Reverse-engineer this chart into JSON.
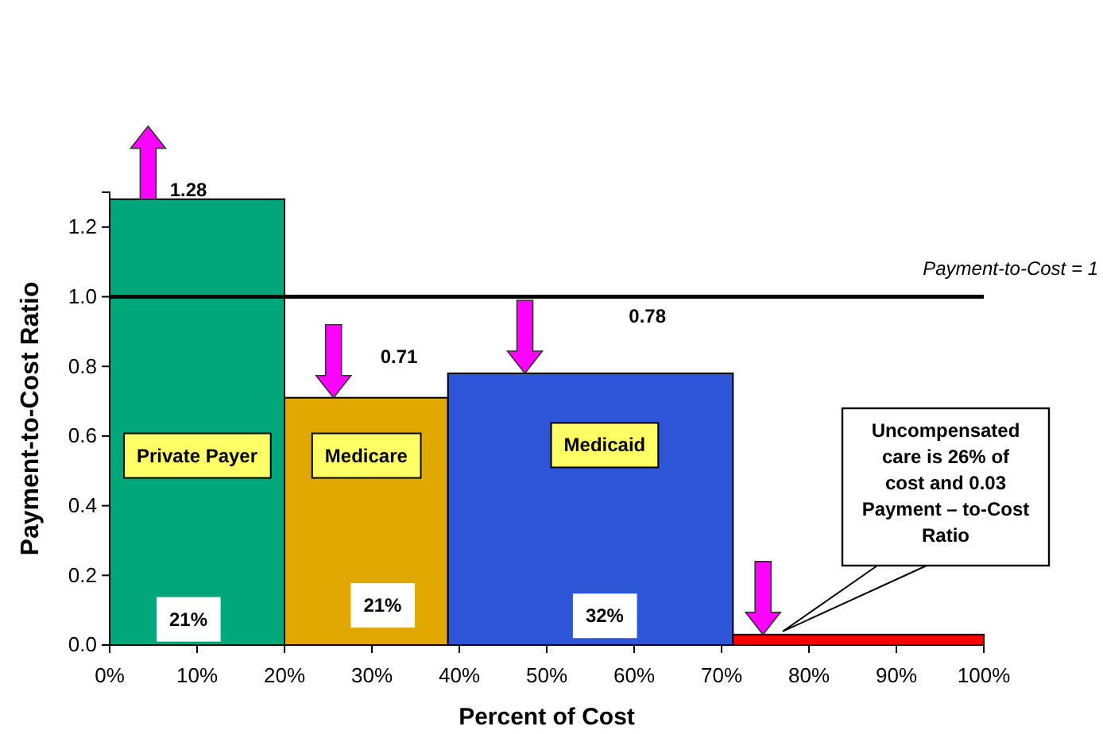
{
  "chart_data": {
    "type": "histogram",
    "xlabel": "Percent of Cost",
    "ylabel": "Payment-to-Cost Ratio",
    "bins": [
      0,
      20,
      38.7,
      71.3,
      100
    ],
    "values": [
      1.28,
      0.71,
      0.78,
      0.03
    ],
    "colors": [
      "#00a77a",
      "#e0a800",
      "#2e55d8",
      "#ff0000"
    ],
    "value_labels": [
      "1.28",
      "0.71",
      "0.78",
      null
    ],
    "xlim": [
      0,
      100
    ],
    "ylim": [
      0,
      1.3
    ],
    "xticks": [
      {
        "value": 0,
        "label": "0%"
      },
      {
        "value": 10,
        "label": "10%"
      },
      {
        "value": 20,
        "label": "20%"
      },
      {
        "value": 30,
        "label": "30%"
      },
      {
        "value": 40,
        "label": "40%"
      },
      {
        "value": 50,
        "label": "50%"
      },
      {
        "value": 60,
        "label": "60%"
      },
      {
        "value": 70,
        "label": "70%"
      },
      {
        "value": 80,
        "label": "80%"
      },
      {
        "value": 90,
        "label": "90%"
      },
      {
        "value": 100,
        "label": "100%"
      }
    ],
    "yticks": [
      {
        "value": 0,
        "label": "0.0"
      },
      {
        "value": 0.2,
        "label": "0.2"
      },
      {
        "value": 0.4,
        "label": "0.4"
      },
      {
        "value": 0.6,
        "label": "0.6"
      },
      {
        "value": 0.8,
        "label": "0.8"
      },
      {
        "value": 1,
        "label": "1.0"
      },
      {
        "value": 1.2,
        "label": "1.2"
      }
    ],
    "ref_lines": [
      {
        "axis": "y",
        "value": 1,
        "label": "Payment-to-Cost = 1",
        "color": "#000000"
      }
    ],
    "annotations": [
      "Private Payer",
      "Medicare",
      "Medicaid",
      "21%",
      "21%",
      "32%",
      {
        "text": "Uncompensated care is 26% of cost and 0.03 Payment – to-Cost Ratio",
        "x": 77,
        "y": 0.03
      }
    ],
    "grid": false
  }
}
